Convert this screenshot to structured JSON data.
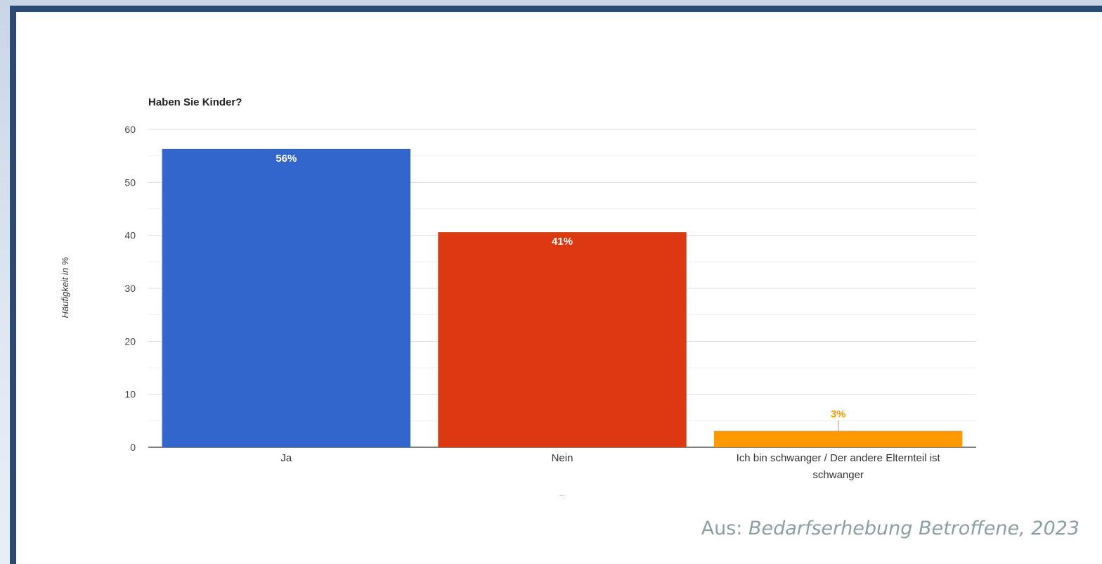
{
  "caption": {
    "prefix": "Aus: ",
    "source": "Bedarfserhebung Betroffene,  2023"
  },
  "chart_data": {
    "type": "bar",
    "title": "Haben Sie Kinder?",
    "xlabel": "",
    "ylabel": "Häufigkeit in %",
    "ylim": [
      0,
      60
    ],
    "yticks": [
      0,
      10,
      20,
      30,
      40,
      50,
      60
    ],
    "grid": true,
    "categories": [
      "Ja",
      "Nein",
      "Ich bin schwanger / Der andere Elternteil ist schwanger"
    ],
    "category_label_lines": [
      [
        "Ja"
      ],
      [
        "Nein"
      ],
      [
        "Ich bin schwanger / Der andere Elternteil ist",
        "schwanger"
      ]
    ],
    "values": [
      56.3,
      40.6,
      3.1
    ],
    "data_labels": [
      "56%",
      "41%",
      "3%"
    ],
    "colors": [
      "#3366cc",
      "#dc3912",
      "#ff9900"
    ],
    "footer_text": "..."
  }
}
